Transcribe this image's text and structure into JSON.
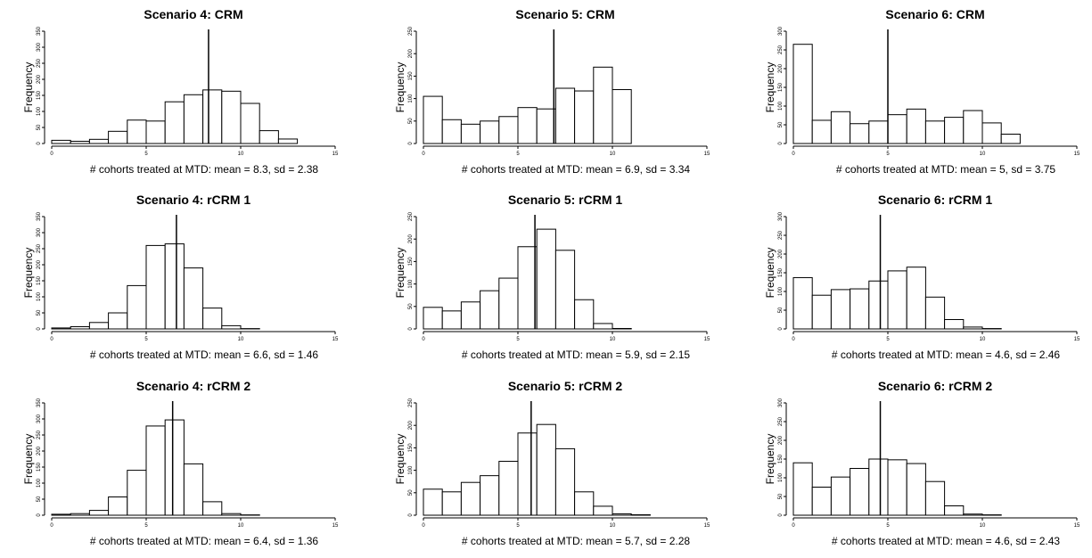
{
  "chart_data": [
    {
      "type": "bar",
      "title": "Scenario 4: CRM",
      "xlabel": "# cohorts treated at MTD: mean = 8.3, sd = 2.38",
      "ylabel": "Frequency",
      "xlim": [
        0,
        15
      ],
      "xticks": [
        0,
        5,
        10,
        15
      ],
      "ylim": [
        0,
        350
      ],
      "yticks": [
        0,
        50,
        100,
        150,
        200,
        250,
        300,
        350
      ],
      "bin_width": 1,
      "bin_starts": [
        0,
        1,
        2,
        3,
        4,
        5,
        6,
        7,
        8,
        9,
        10,
        11,
        12
      ],
      "values": [
        10,
        7,
        13,
        38,
        73,
        70,
        130,
        152,
        167,
        163,
        125,
        40,
        14
      ],
      "mean": 8.3
    },
    {
      "type": "bar",
      "title": "Scenario 5: CRM",
      "xlabel": "# cohorts treated at MTD: mean = 6.9, sd = 3.34",
      "ylabel": "Frequency",
      "xlim": [
        0,
        15
      ],
      "xticks": [
        0,
        5,
        10,
        15
      ],
      "ylim": [
        0,
        250
      ],
      "yticks": [
        0,
        50,
        100,
        150,
        200,
        250
      ],
      "bin_width": 1,
      "bin_starts": [
        0,
        1,
        2,
        3,
        4,
        5,
        6,
        7,
        8,
        9,
        10
      ],
      "values": [
        105,
        53,
        43,
        50,
        60,
        80,
        77,
        123,
        117,
        170,
        120
      ],
      "mean": 6.9
    },
    {
      "type": "bar",
      "title": "Scenario 6: CRM",
      "xlabel": "# cohorts treated at MTD: mean = 5, sd = 3.75",
      "ylabel": "Frequency",
      "xlim": [
        0,
        15
      ],
      "xticks": [
        0,
        5,
        10,
        15
      ],
      "ylim": [
        0,
        300
      ],
      "yticks": [
        0,
        50,
        100,
        150,
        200,
        250,
        300
      ],
      "bin_width": 1,
      "bin_starts": [
        0,
        1,
        2,
        3,
        4,
        5,
        6,
        7,
        8,
        9,
        10,
        11
      ],
      "values": [
        265,
        62,
        85,
        53,
        60,
        77,
        92,
        60,
        70,
        88,
        55,
        25
      ],
      "mean": 5
    },
    {
      "type": "bar",
      "title": "Scenario 4: rCRM 1",
      "xlabel": "# cohorts treated at MTD: mean = 6.6, sd = 1.46",
      "ylabel": "Frequency",
      "xlim": [
        0,
        15
      ],
      "xticks": [
        0,
        5,
        10,
        15
      ],
      "ylim": [
        0,
        350
      ],
      "yticks": [
        0,
        50,
        100,
        150,
        200,
        250,
        300,
        350
      ],
      "bin_width": 1,
      "bin_starts": [
        0,
        1,
        2,
        3,
        4,
        5,
        6,
        7,
        8,
        9,
        10
      ],
      "values": [
        3,
        7,
        20,
        50,
        135,
        260,
        265,
        190,
        65,
        10,
        1
      ],
      "mean": 6.6
    },
    {
      "type": "bar",
      "title": "Scenario 5: rCRM 1",
      "xlabel": "# cohorts treated at MTD: mean = 5.9, sd = 2.15",
      "ylabel": "Frequency",
      "xlim": [
        0,
        15
      ],
      "xticks": [
        0,
        5,
        10,
        15
      ],
      "ylim": [
        0,
        250
      ],
      "yticks": [
        0,
        50,
        100,
        150,
        200,
        250
      ],
      "bin_width": 1,
      "bin_starts": [
        0,
        1,
        2,
        3,
        4,
        5,
        6,
        7,
        8,
        9,
        10
      ],
      "values": [
        48,
        40,
        60,
        85,
        113,
        183,
        222,
        175,
        65,
        12,
        1
      ],
      "mean": 5.9
    },
    {
      "type": "bar",
      "title": "Scenario 6: rCRM 1",
      "xlabel": "# cohorts treated at MTD: mean = 4.6, sd = 2.46",
      "ylabel": "Frequency",
      "xlim": [
        0,
        15
      ],
      "xticks": [
        0,
        5,
        10,
        15
      ],
      "ylim": [
        0,
        300
      ],
      "yticks": [
        0,
        50,
        100,
        150,
        200,
        250,
        300
      ],
      "bin_width": 1,
      "bin_starts": [
        0,
        1,
        2,
        3,
        4,
        5,
        6,
        7,
        8,
        9,
        10
      ],
      "values": [
        137,
        90,
        105,
        107,
        128,
        155,
        165,
        85,
        25,
        5,
        1
      ],
      "mean": 4.6
    },
    {
      "type": "bar",
      "title": "Scenario 4: rCRM 2",
      "xlabel": "# cohorts treated at MTD: mean = 6.4, sd = 1.36",
      "ylabel": "Frequency",
      "xlim": [
        0,
        15
      ],
      "xticks": [
        0,
        5,
        10,
        15
      ],
      "ylim": [
        0,
        350
      ],
      "yticks": [
        0,
        50,
        100,
        150,
        200,
        250,
        300,
        350
      ],
      "bin_width": 1,
      "bin_starts": [
        0,
        1,
        2,
        3,
        4,
        5,
        6,
        7,
        8,
        9,
        10
      ],
      "values": [
        3,
        5,
        15,
        57,
        140,
        278,
        297,
        160,
        42,
        5,
        1
      ],
      "mean": 6.4
    },
    {
      "type": "bar",
      "title": "Scenario 5: rCRM 2",
      "xlabel": "# cohorts treated at MTD: mean = 5.7, sd = 2.28",
      "ylabel": "Frequency",
      "xlim": [
        0,
        15
      ],
      "xticks": [
        0,
        5,
        10,
        15
      ],
      "ylim": [
        0,
        250
      ],
      "yticks": [
        0,
        50,
        100,
        150,
        200,
        250
      ],
      "bin_width": 1,
      "bin_starts": [
        0,
        1,
        2,
        3,
        4,
        5,
        6,
        7,
        8,
        9,
        10,
        11
      ],
      "values": [
        58,
        52,
        73,
        88,
        120,
        183,
        202,
        148,
        52,
        20,
        3,
        1
      ],
      "mean": 5.7
    },
    {
      "type": "bar",
      "title": "Scenario 6: rCRM 2",
      "xlabel": "# cohorts treated at MTD: mean = 4.6, sd = 2.43",
      "ylabel": "Frequency",
      "xlim": [
        0,
        15
      ],
      "xticks": [
        0,
        5,
        10,
        15
      ],
      "ylim": [
        0,
        300
      ],
      "yticks": [
        0,
        50,
        100,
        150,
        200,
        250,
        300
      ],
      "bin_width": 1,
      "bin_starts": [
        0,
        1,
        2,
        3,
        4,
        5,
        6,
        7,
        8,
        9,
        10
      ],
      "values": [
        140,
        75,
        102,
        125,
        150,
        148,
        138,
        90,
        25,
        3,
        1
      ],
      "mean": 4.6
    }
  ]
}
